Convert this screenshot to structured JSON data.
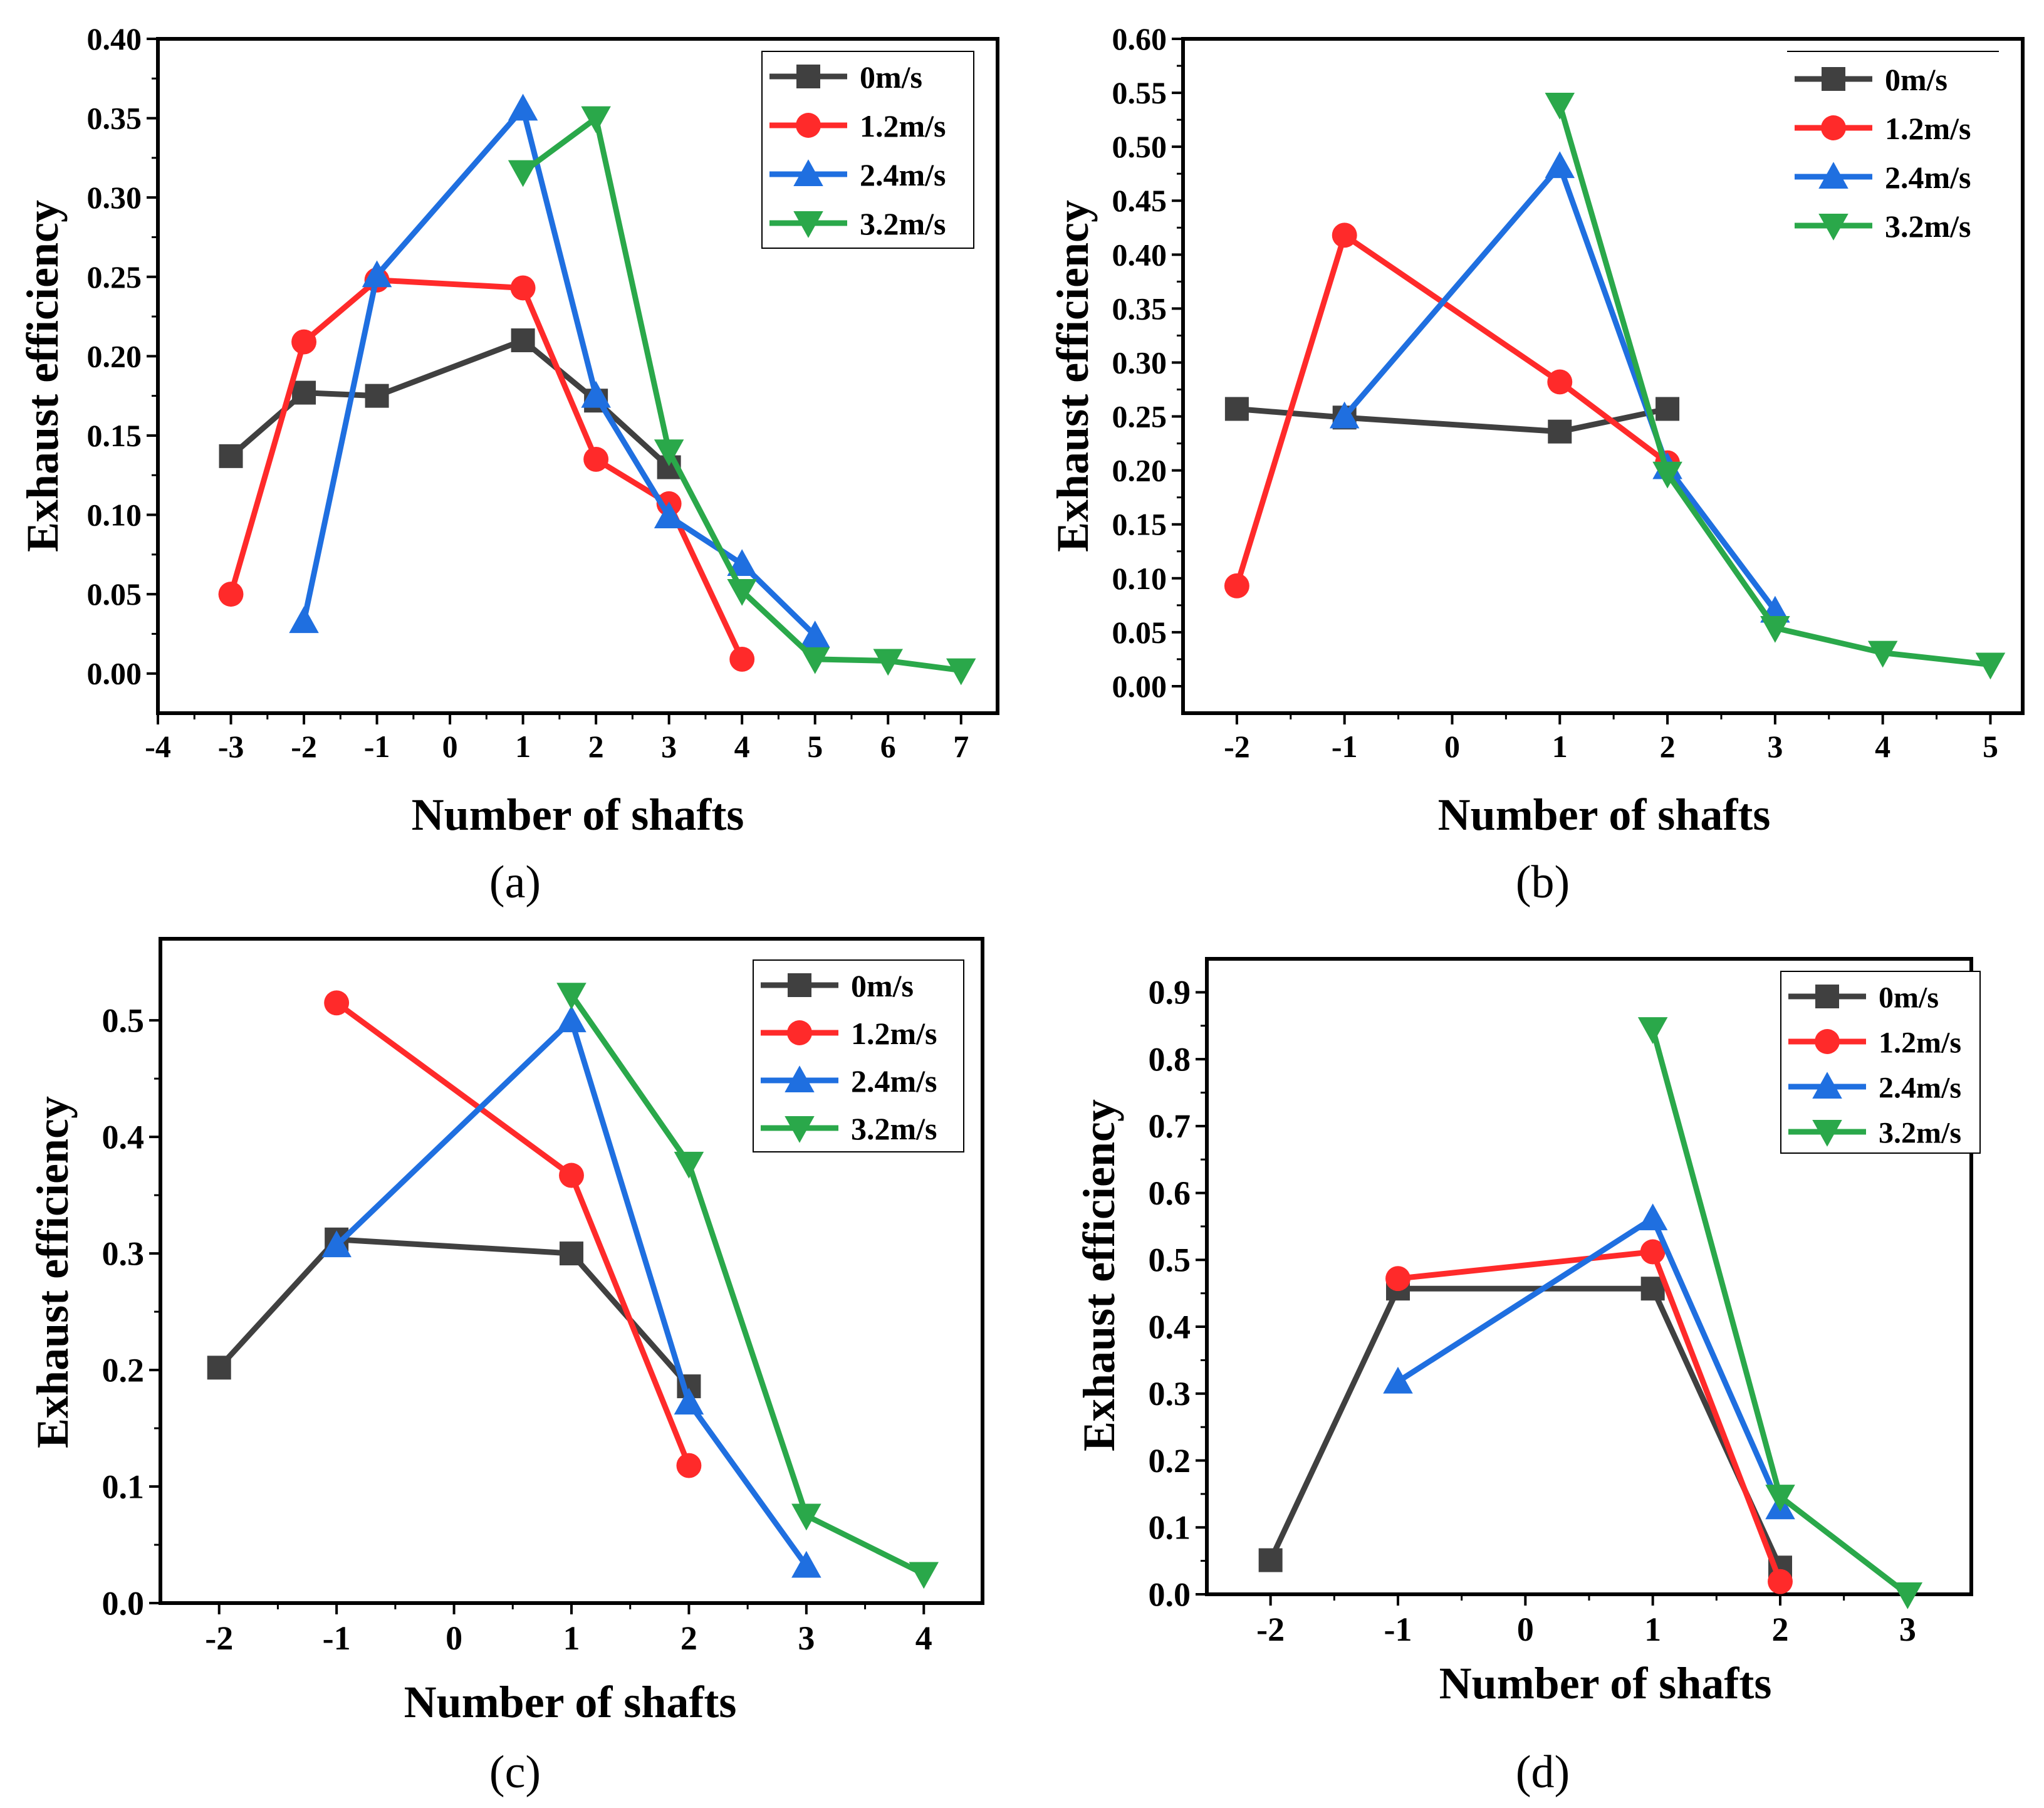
{
  "figure": {
    "panels": [
      {
        "caption": "(a)",
        "xlabel": "Number of shafts",
        "ylabel": "Exhaust efficiency",
        "legend_position": "top-right",
        "chart_data": {
          "type": "line",
          "xlabel": "Number of shafts",
          "ylabel": "Exhaust efficiency",
          "xlim": [
            -4,
            7.5
          ],
          "ylim": [
            -0.025,
            0.4
          ],
          "xticks": [
            -4,
            -3,
            -2,
            -1,
            0,
            1,
            2,
            3,
            4,
            5,
            6,
            7
          ],
          "yticks": [
            0.0,
            0.05,
            0.1,
            0.15,
            0.2,
            0.25,
            0.3,
            0.35,
            0.4
          ],
          "ytick_labels": [
            "0.00",
            "0.05",
            "0.10",
            "0.15",
            "0.20",
            "0.25",
            "0.30",
            "0.35",
            "0.40"
          ],
          "grid": false,
          "series": [
            {
              "name": "0m/s",
              "color": "#404040",
              "marker": "square",
              "x": [
                -3,
                -2,
                -1,
                1,
                2,
                3
              ],
              "y": [
                0.137,
                0.177,
                0.175,
                0.21,
                0.172,
                0.13
              ]
            },
            {
              "name": "1.2m/s",
              "color": "#ff2a2a",
              "marker": "circle",
              "x": [
                -3,
                -2,
                -1,
                1,
                2,
                3,
                4
              ],
              "y": [
                0.05,
                0.209,
                0.248,
                0.243,
                0.135,
                0.107,
                0.009
              ]
            },
            {
              "name": "2.4m/s",
              "color": "#1f6fe0",
              "marker": "triangle-up",
              "x": [
                -2,
                -1,
                1,
                2,
                3,
                4,
                5
              ],
              "y": [
                0.033,
                0.251,
                0.356,
                0.175,
                0.099,
                0.069,
                0.024
              ]
            },
            {
              "name": "3.2m/s",
              "color": "#2aa84a",
              "marker": "triangle-down",
              "x": [
                1,
                2,
                3,
                4,
                5,
                6,
                7
              ],
              "y": [
                0.316,
                0.35,
                0.14,
                0.052,
                0.009,
                0.008,
                0.002
              ]
            }
          ]
        }
      },
      {
        "caption": "(b)",
        "xlabel": "Number of shafts",
        "ylabel": "Exhaust efficiency",
        "legend_position": "top-right",
        "chart_data": {
          "type": "line",
          "xlabel": "Number of shafts",
          "ylabel": "Exhaust efficiency",
          "xlim": [
            -2.5,
            5.3
          ],
          "ylim": [
            -0.025,
            0.6
          ],
          "xticks": [
            -2,
            -1,
            0,
            1,
            2,
            3,
            4,
            5
          ],
          "yticks": [
            0.0,
            0.05,
            0.1,
            0.15,
            0.2,
            0.25,
            0.3,
            0.35,
            0.4,
            0.45,
            0.5,
            0.55,
            0.6
          ],
          "ytick_labels": [
            "0.00",
            "0.05",
            "0.10",
            "0.15",
            "0.20",
            "0.25",
            "0.30",
            "0.35",
            "0.40",
            "0.45",
            "0.50",
            "0.55",
            "0.60"
          ],
          "grid": false,
          "series": [
            {
              "name": "0m/s",
              "color": "#404040",
              "marker": "square",
              "x": [
                -2,
                -1,
                1,
                2
              ],
              "y": [
                0.257,
                0.249,
                0.236,
                0.257
              ]
            },
            {
              "name": "1.2m/s",
              "color": "#ff2a2a",
              "marker": "circle",
              "x": [
                -2,
                -1,
                1,
                2
              ],
              "y": [
                0.093,
                0.418,
                0.282,
                0.207
              ]
            },
            {
              "name": "2.4m/s",
              "color": "#1f6fe0",
              "marker": "triangle-up",
              "x": [
                -1,
                1,
                2,
                3
              ],
              "y": [
                0.25,
                0.482,
                0.203,
                0.07
              ]
            },
            {
              "name": "3.2m/s",
              "color": "#2aa84a",
              "marker": "triangle-down",
              "x": [
                1,
                2,
                3,
                4,
                5
              ],
              "y": [
                0.539,
                0.197,
                0.054,
                0.031,
                0.02
              ]
            }
          ]
        }
      },
      {
        "caption": "(c)",
        "xlabel": "Number of shafts",
        "ylabel": "Exhaust efficiency",
        "legend_position": "top-right",
        "chart_data": {
          "type": "line",
          "xlabel": "Number of shafts",
          "ylabel": "Exhaust efficiency",
          "xlim": [
            -2.5,
            4.5
          ],
          "ylim": [
            0.0,
            0.57
          ],
          "xticks": [
            -2,
            -1,
            0,
            1,
            2,
            3,
            4
          ],
          "yticks": [
            0.0,
            0.1,
            0.2,
            0.3,
            0.4,
            0.5
          ],
          "ytick_labels": [
            "0.0",
            "0.1",
            "0.2",
            "0.3",
            "0.4",
            "0.5"
          ],
          "grid": false,
          "series": [
            {
              "name": "0m/s",
              "color": "#404040",
              "marker": "square",
              "x": [
                -2,
                -1,
                1,
                2
              ],
              "y": [
                0.202,
                0.312,
                0.3,
                0.186
              ]
            },
            {
              "name": "1.2m/s",
              "color": "#ff2a2a",
              "marker": "circle",
              "x": [
                -1,
                1,
                2
              ],
              "y": [
                0.515,
                0.367,
                0.118
              ]
            },
            {
              "name": "2.4m/s",
              "color": "#1f6fe0",
              "marker": "triangle-up",
              "x": [
                -1,
                1,
                2,
                3
              ],
              "y": [
                0.307,
                0.5,
                0.172,
                0.032
              ]
            },
            {
              "name": "3.2m/s",
              "color": "#2aa84a",
              "marker": "triangle-down",
              "x": [
                1,
                2,
                3,
                4
              ],
              "y": [
                0.522,
                0.377,
                0.075,
                0.025
              ]
            }
          ]
        }
      },
      {
        "caption": "(d)",
        "xlabel": "Number of shafts",
        "ylabel": "Exhaust efficiency",
        "legend_position": "top-right",
        "chart_data": {
          "type": "line",
          "xlabel": "Number of shafts",
          "ylabel": "Exhaust efficiency",
          "xlim": [
            -2.5,
            3.5
          ],
          "ylim": [
            0.0,
            0.95
          ],
          "xticks": [
            -2,
            -1,
            0,
            1,
            2,
            3
          ],
          "yticks": [
            0.0,
            0.1,
            0.2,
            0.3,
            0.4,
            0.5,
            0.6,
            0.7,
            0.8,
            0.9
          ],
          "ytick_labels": [
            "0.0",
            "0.1",
            "0.2",
            "0.3",
            "0.4",
            "0.5",
            "0.6",
            "0.7",
            "0.8",
            "0.9"
          ],
          "grid": false,
          "series": [
            {
              "name": "0m/s",
              "color": "#404040",
              "marker": "square",
              "x": [
                -2,
                -1,
                1,
                2
              ],
              "y": [
                0.051,
                0.457,
                0.457,
                0.04
              ]
            },
            {
              "name": "1.2m/s",
              "color": "#ff2a2a",
              "marker": "circle",
              "x": [
                -1,
                1,
                2
              ],
              "y": [
                0.472,
                0.512,
                0.019
              ]
            },
            {
              "name": "2.4m/s",
              "color": "#1f6fe0",
              "marker": "triangle-up",
              "x": [
                -1,
                1,
                2
              ],
              "y": [
                0.318,
                0.562,
                0.13
              ]
            },
            {
              "name": "3.2m/s",
              "color": "#2aa84a",
              "marker": "triangle-down",
              "x": [
                1,
                2,
                3
              ],
              "y": [
                0.845,
                0.146,
                0.0
              ]
            }
          ]
        }
      }
    ]
  }
}
